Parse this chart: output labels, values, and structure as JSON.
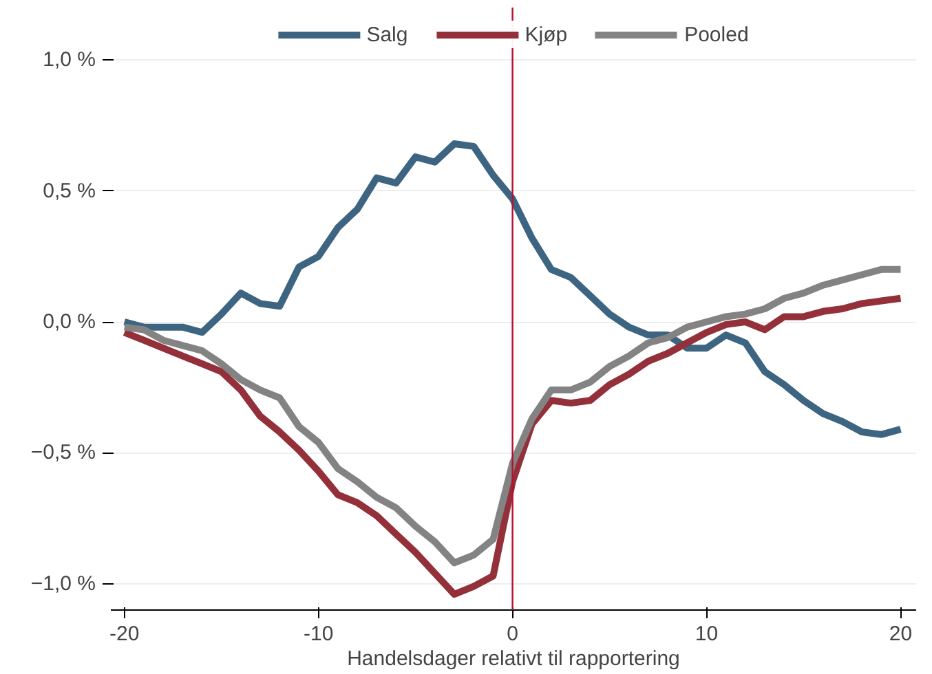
{
  "chart_data": {
    "type": "line",
    "xlabel": "Handelsdager relativt til rapportering",
    "x": [
      -20,
      -19,
      -18,
      -17,
      -16,
      -15,
      -14,
      -13,
      -12,
      -11,
      -10,
      -9,
      -8,
      -7,
      -6,
      -5,
      -4,
      -3,
      -2,
      -1,
      0,
      1,
      2,
      3,
      4,
      5,
      6,
      7,
      8,
      9,
      10,
      11,
      12,
      13,
      14,
      15,
      16,
      17,
      18,
      19,
      20
    ],
    "series": [
      {
        "name": "Salg",
        "color": "#3d6480",
        "values": [
          0.0,
          -0.02,
          -0.02,
          -0.02,
          -0.04,
          0.03,
          0.11,
          0.07,
          0.06,
          0.21,
          0.25,
          0.36,
          0.43,
          0.55,
          0.53,
          0.63,
          0.61,
          0.68,
          0.67,
          0.56,
          0.47,
          0.32,
          0.2,
          0.17,
          0.1,
          0.03,
          -0.02,
          -0.05,
          -0.05,
          -0.1,
          -0.1,
          -0.05,
          -0.08,
          -0.19,
          -0.24,
          -0.3,
          -0.35,
          -0.38,
          -0.42,
          -0.43,
          -0.41
        ]
      },
      {
        "name": "Kjøp",
        "color": "#933039",
        "values": [
          -0.04,
          -0.07,
          -0.1,
          -0.13,
          -0.16,
          -0.19,
          -0.26,
          -0.36,
          -0.42,
          -0.49,
          -0.57,
          -0.66,
          -0.69,
          -0.74,
          -0.81,
          -0.88,
          -0.96,
          -1.04,
          -1.01,
          -0.97,
          -0.61,
          -0.39,
          -0.3,
          -0.31,
          -0.3,
          -0.24,
          -0.2,
          -0.15,
          -0.12,
          -0.08,
          -0.04,
          -0.01,
          0.0,
          -0.03,
          0.02,
          0.02,
          0.04,
          0.05,
          0.07,
          0.08,
          0.09
        ]
      },
      {
        "name": "Pooled",
        "color": "#838383",
        "values": [
          -0.02,
          -0.03,
          -0.07,
          -0.09,
          -0.11,
          -0.16,
          -0.22,
          -0.26,
          -0.29,
          -0.4,
          -0.46,
          -0.56,
          -0.61,
          -0.67,
          -0.71,
          -0.78,
          -0.84,
          -0.92,
          -0.89,
          -0.83,
          -0.54,
          -0.37,
          -0.26,
          -0.26,
          -0.23,
          -0.17,
          -0.13,
          -0.08,
          -0.06,
          -0.02,
          0.0,
          0.02,
          0.03,
          0.05,
          0.09,
          0.11,
          0.14,
          0.16,
          0.18,
          0.2,
          0.2
        ]
      }
    ],
    "xlim": [
      -20.7,
      20.8
    ],
    "ylim": [
      -1.1,
      1.2
    ],
    "xticks": [
      {
        "value": -20,
        "label": "-20"
      },
      {
        "value": -10,
        "label": "-10"
      },
      0,
      10,
      20
    ],
    "yticks": [
      {
        "value": -1.0,
        "label": "−1,0 %"
      },
      {
        "value": -0.5,
        "label": "−0,5 %"
      },
      {
        "value": 0.0,
        "label": "0,0 %"
      },
      {
        "value": 0.5,
        "label": "0,5 %"
      },
      {
        "value": 1.0,
        "label": "1,0 %"
      }
    ],
    "ref_lines": [
      {
        "axis": "x",
        "value": 0,
        "color": "#b5112f"
      }
    ],
    "grid": "y",
    "legend": "top",
    "line_style": "solid",
    "marker": "none"
  }
}
